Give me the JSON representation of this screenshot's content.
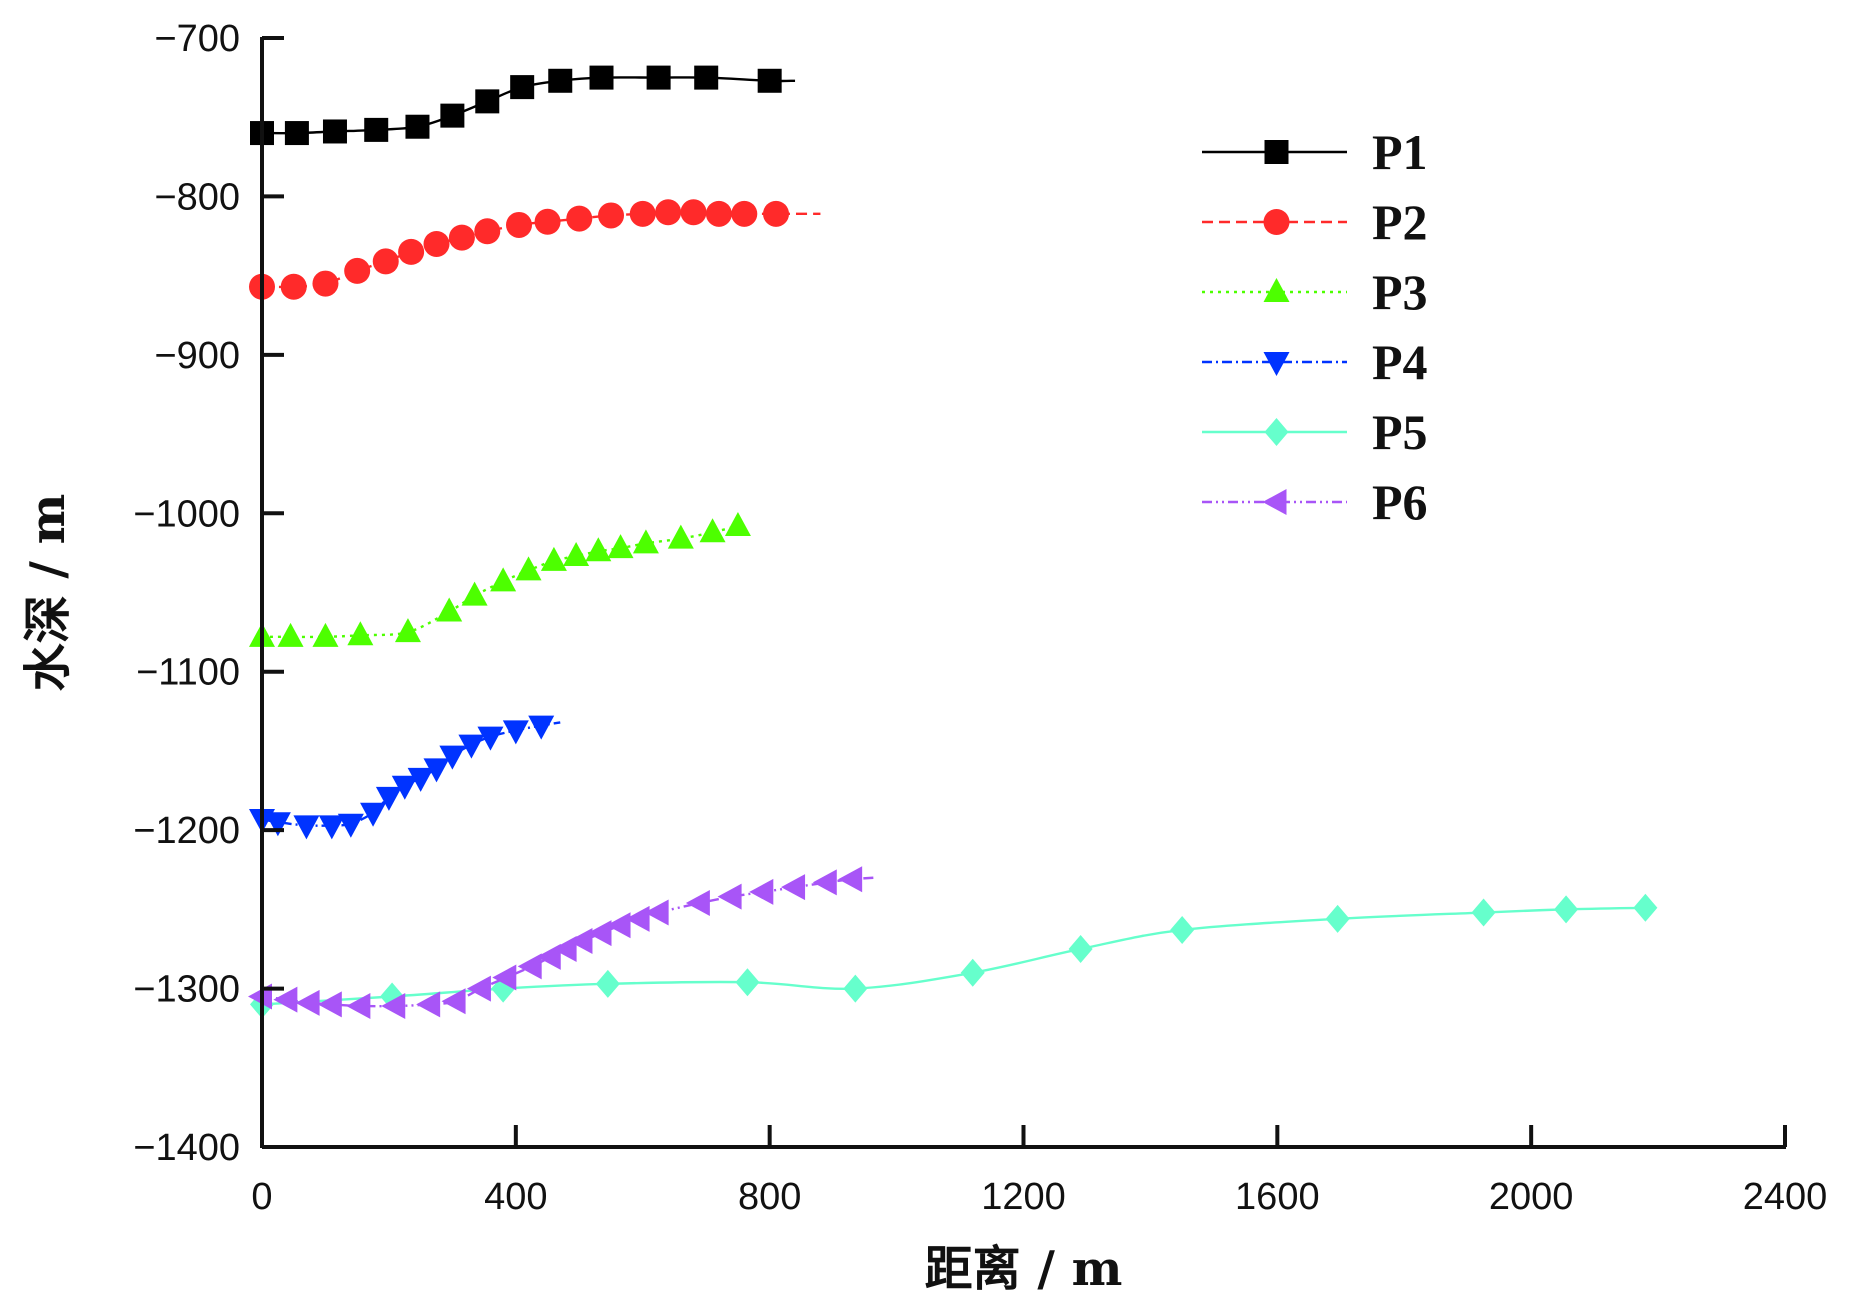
{
  "chart_data": {
    "type": "line",
    "xlabel": "距离 / m",
    "ylabel": "水深 / m",
    "xlim": [
      0,
      2400
    ],
    "ylim": [
      -1400,
      -700
    ],
    "xticks": [
      0,
      400,
      800,
      1200,
      1600,
      2000,
      2400
    ],
    "yticks": [
      -700,
      -800,
      -900,
      -1000,
      -1100,
      -1200,
      -1300,
      -1400
    ],
    "xtick_labels": [
      "0",
      "400",
      "800",
      "1200",
      "1600",
      "2000",
      "2400"
    ],
    "ytick_labels": [
      "−700",
      "−800",
      "−900",
      "−1000",
      "−1100",
      "−1200",
      "−1300",
      "−1400"
    ],
    "grid": false,
    "legend_position": "top-right",
    "series": [
      {
        "name": "P1",
        "color": "#000000",
        "dash": "solid",
        "marker": "square",
        "x": [
          0,
          55,
          115,
          180,
          245,
          300,
          355,
          410,
          470,
          535,
          625,
          700,
          800,
          840
        ],
        "y": [
          -760,
          -760,
          -759,
          -758,
          -756,
          -749,
          -740,
          -731,
          -727,
          -725,
          -725,
          -725,
          -727,
          -727
        ],
        "marked": [
          true,
          true,
          true,
          true,
          true,
          true,
          true,
          true,
          true,
          true,
          true,
          true,
          true,
          false
        ]
      },
      {
        "name": "P2",
        "color": "#ff2a2a",
        "dash": "dashed",
        "marker": "circle",
        "x": [
          0,
          50,
          100,
          150,
          195,
          235,
          275,
          315,
          355,
          405,
          450,
          500,
          550,
          600,
          640,
          680,
          720,
          760,
          810,
          880
        ],
        "y": [
          -857,
          -857,
          -855,
          -847,
          -841,
          -835,
          -830,
          -826,
          -822,
          -818,
          -816,
          -814,
          -812,
          -811,
          -810,
          -810,
          -811,
          -811,
          -811,
          -811
        ],
        "marked": [
          true,
          true,
          true,
          true,
          true,
          true,
          true,
          true,
          true,
          true,
          true,
          true,
          true,
          true,
          true,
          true,
          true,
          true,
          true,
          false
        ]
      },
      {
        "name": "P3",
        "color": "#4dff00",
        "dash": "dotted",
        "marker": "triangle-up",
        "x": [
          0,
          45,
          100,
          155,
          230,
          295,
          335,
          380,
          420,
          460,
          495,
          530,
          565,
          605,
          660,
          710,
          750
        ],
        "y": [
          -1078,
          -1078,
          -1078,
          -1077,
          -1075,
          -1062,
          -1052,
          -1043,
          -1036,
          -1030,
          -1027,
          -1024,
          -1022,
          -1019,
          -1016,
          -1012,
          -1008
        ],
        "marked": [
          true,
          true,
          true,
          true,
          true,
          true,
          true,
          true,
          true,
          true,
          true,
          true,
          true,
          true,
          true,
          true,
          true
        ]
      },
      {
        "name": "P4",
        "color": "#0033ff",
        "dash": "dashdot",
        "marker": "triangle-down",
        "x": [
          0,
          25,
          70,
          110,
          140,
          175,
          200,
          225,
          250,
          275,
          300,
          330,
          360,
          400,
          440,
          470
        ],
        "y": [
          -1193,
          -1195,
          -1197,
          -1197,
          -1196,
          -1189,
          -1179,
          -1172,
          -1167,
          -1161,
          -1153,
          -1146,
          -1141,
          -1137,
          -1134,
          -1132
        ],
        "marked": [
          true,
          true,
          true,
          true,
          true,
          true,
          true,
          true,
          true,
          true,
          true,
          true,
          true,
          true,
          true,
          false
        ]
      },
      {
        "name": "P5",
        "color": "#66ffcc",
        "dash": "solid",
        "marker": "diamond",
        "x": [
          0,
          205,
          380,
          545,
          765,
          935,
          1120,
          1290,
          1450,
          1695,
          1925,
          2055,
          2180
        ],
        "y": [
          -1310,
          -1305,
          -1300,
          -1297,
          -1296,
          -1300,
          -1290,
          -1275,
          -1263,
          -1256,
          -1252,
          -1250,
          -1249
        ],
        "marked": [
          true,
          true,
          true,
          true,
          true,
          true,
          true,
          true,
          true,
          true,
          true,
          true,
          true
        ]
      },
      {
        "name": "P6",
        "color": "#a855f7",
        "dash": "dashdotdot",
        "marker": "triangle-left",
        "x": [
          0,
          40,
          75,
          110,
          155,
          210,
          265,
          305,
          345,
          385,
          425,
          455,
          480,
          505,
          535,
          565,
          595,
          625,
          690,
          740,
          790,
          840,
          890,
          930,
          965
        ],
        "y": [
          -1305,
          -1307,
          -1309,
          -1310,
          -1311,
          -1311,
          -1310,
          -1308,
          -1300,
          -1293,
          -1286,
          -1280,
          -1275,
          -1270,
          -1265,
          -1260,
          -1256,
          -1252,
          -1246,
          -1242,
          -1239,
          -1236,
          -1233,
          -1231,
          -1230
        ],
        "marked": [
          true,
          true,
          true,
          true,
          true,
          true,
          true,
          true,
          true,
          true,
          true,
          true,
          true,
          true,
          true,
          true,
          true,
          true,
          true,
          true,
          true,
          true,
          true,
          true,
          false
        ]
      }
    ]
  }
}
